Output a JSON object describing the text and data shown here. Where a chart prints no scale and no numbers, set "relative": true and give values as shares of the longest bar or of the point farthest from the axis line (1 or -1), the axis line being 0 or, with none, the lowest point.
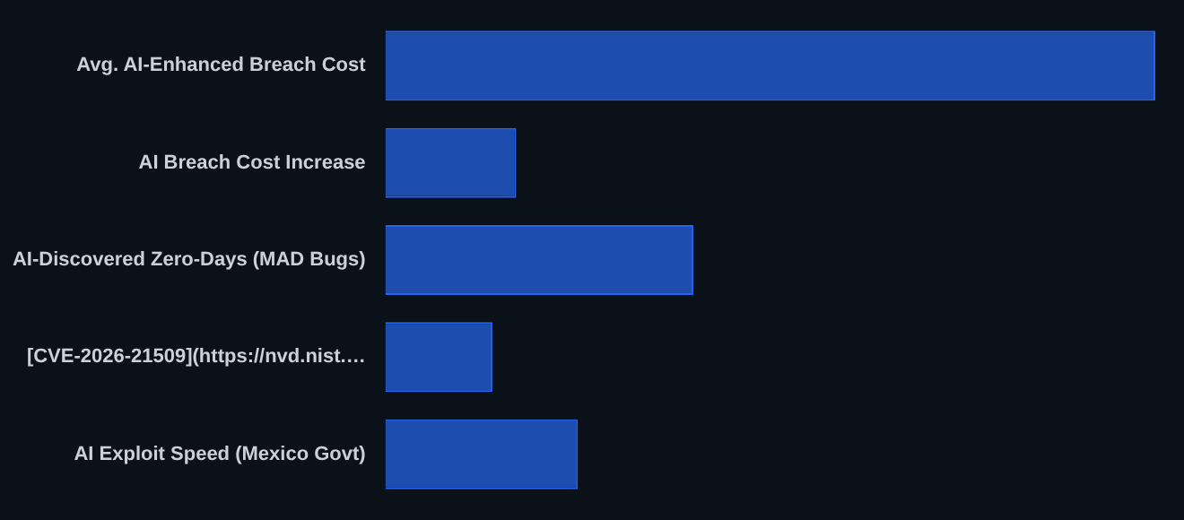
{
  "chart_data": {
    "type": "bar",
    "orientation": "horizontal",
    "relative": true,
    "categories": [
      "Avg. AI-Enhanced Breach Cost",
      "AI Breach Cost Increase",
      "AI-Discovered Zero-Days (MAD Bugs)",
      "[CVE-2026-21509](https://nvd.nist.…",
      "AI Exploit Speed (Mexico Govt)"
    ],
    "series": [
      {
        "color": "#1e4db0",
        "values": [
          1,
          0.17,
          0.4,
          0.139,
          0.25
        ]
      }
    ],
    "legend": false
  }
}
